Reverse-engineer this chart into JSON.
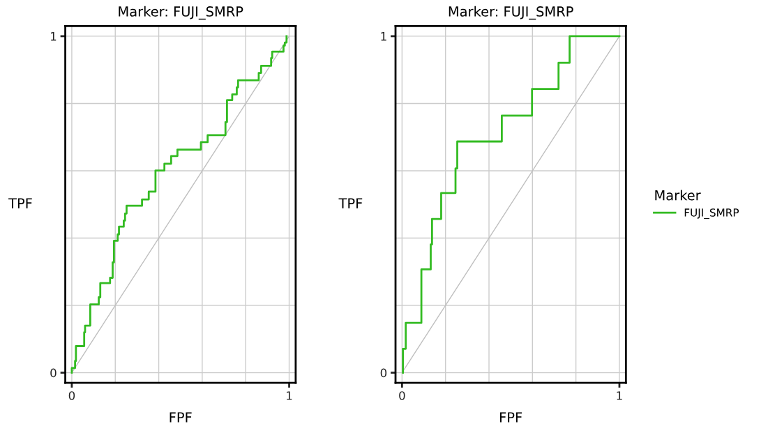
{
  "chart_data": [
    {
      "type": "line",
      "title": "Marker: FUJI_SMRP",
      "xlabel": "FPF",
      "ylabel": "TPF",
      "xlim": [
        -0.03,
        1.03
      ],
      "ylim": [
        -0.03,
        1.03
      ],
      "xticks": [
        0,
        {
          "value": 0.2,
          "label": null
        },
        {
          "value": 0.4,
          "label": null
        },
        {
          "value": 0.6,
          "label": null
        },
        {
          "value": 0.8,
          "label": null
        },
        1
      ],
      "yticks": [
        0,
        {
          "value": 0.2,
          "label": null
        },
        {
          "value": 0.4,
          "label": null
        },
        {
          "value": 0.6,
          "label": null
        },
        {
          "value": 0.8,
          "label": null
        },
        1
      ],
      "grid": true,
      "series": [
        {
          "color": "#bfbfbf",
          "x": [
            0,
            1
          ],
          "values": [
            0,
            1
          ]
        },
        {
          "color": "#33bb22",
          "x": [
            0,
            0,
            0.015,
            0.015,
            0.019,
            0.019,
            0.057,
            0.057,
            0.061,
            0.061,
            0.085,
            0.085,
            0.124,
            0.124,
            0.131,
            0.131,
            0.176,
            0.176,
            0.188,
            0.188,
            0.194,
            0.194,
            0.211,
            0.211,
            0.217,
            0.217,
            0.239,
            0.239,
            0.245,
            0.245,
            0.252,
            0.252,
            0.323,
            0.323,
            0.354,
            0.354,
            0.385,
            0.385,
            0.426,
            0.426,
            0.457,
            0.457,
            0.486,
            0.486,
            0.594,
            0.594,
            0.625,
            0.625,
            0.707,
            0.707,
            0.714,
            0.714,
            0.738,
            0.738,
            0.759,
            0.759,
            0.765,
            0.765,
            0.86,
            0.86,
            0.871,
            0.871,
            0.917,
            0.917,
            0.922,
            0.922,
            0.974,
            0.974,
            0.98,
            0.98,
            0.988,
            0.988
          ],
          "values": [
            0,
            0.014,
            0.014,
            0.035,
            0.035,
            0.079,
            0.079,
            0.12,
            0.12,
            0.14,
            0.14,
            0.203,
            0.203,
            0.224,
            0.224,
            0.266,
            0.266,
            0.282,
            0.282,
            0.328,
            0.328,
            0.392,
            0.392,
            0.411,
            0.411,
            0.434,
            0.434,
            0.452,
            0.452,
            0.473,
            0.473,
            0.496,
            0.496,
            0.515,
            0.515,
            0.538,
            0.538,
            0.601,
            0.601,
            0.621,
            0.621,
            0.644,
            0.644,
            0.663,
            0.663,
            0.685,
            0.685,
            0.706,
            0.706,
            0.745,
            0.745,
            0.81,
            0.81,
            0.827,
            0.827,
            0.848,
            0.848,
            0.869,
            0.869,
            0.891,
            0.891,
            0.912,
            0.912,
            0.935,
            0.935,
            0.954,
            0.954,
            0.972,
            0.972,
            0.981,
            0.981,
            1.0
          ]
        }
      ]
    },
    {
      "type": "line",
      "title": "Marker: FUJI_SMRP",
      "xlabel": "FPF",
      "ylabel": "TPF",
      "xlim": [
        -0.03,
        1.03
      ],
      "ylim": [
        -0.03,
        1.03
      ],
      "xticks": [
        0,
        {
          "value": 0.2,
          "label": null
        },
        {
          "value": 0.4,
          "label": null
        },
        {
          "value": 0.6,
          "label": null
        },
        {
          "value": 0.8,
          "label": null
        },
        1
      ],
      "yticks": [
        0,
        {
          "value": 0.2,
          "label": null
        },
        {
          "value": 0.4,
          "label": null
        },
        {
          "value": 0.6,
          "label": null
        },
        {
          "value": 0.8,
          "label": null
        },
        1
      ],
      "grid": true,
      "legend": "right",
      "legend_title": "Marker",
      "series": [
        {
          "color": "#bfbfbf",
          "x": [
            0,
            1
          ],
          "values": [
            0,
            1
          ]
        },
        {
          "name": "FUJI_SMRP",
          "color": "#33bb22",
          "x": [
            0.004,
            0.004,
            0.017,
            0.017,
            0.089,
            0.089,
            0.132,
            0.132,
            0.138,
            0.138,
            0.18,
            0.18,
            0.246,
            0.246,
            0.254,
            0.254,
            0.459,
            0.459,
            0.598,
            0.598,
            0.72,
            0.72,
            0.771,
            0.771,
            1.0
          ],
          "values": [
            0,
            0.071,
            0.071,
            0.148,
            0.148,
            0.307,
            0.307,
            0.381,
            0.381,
            0.457,
            0.457,
            0.534,
            0.534,
            0.607,
            0.607,
            0.687,
            0.687,
            0.764,
            0.764,
            0.843,
            0.843,
            0.921,
            0.921,
            1.0,
            1.0
          ]
        }
      ]
    }
  ]
}
